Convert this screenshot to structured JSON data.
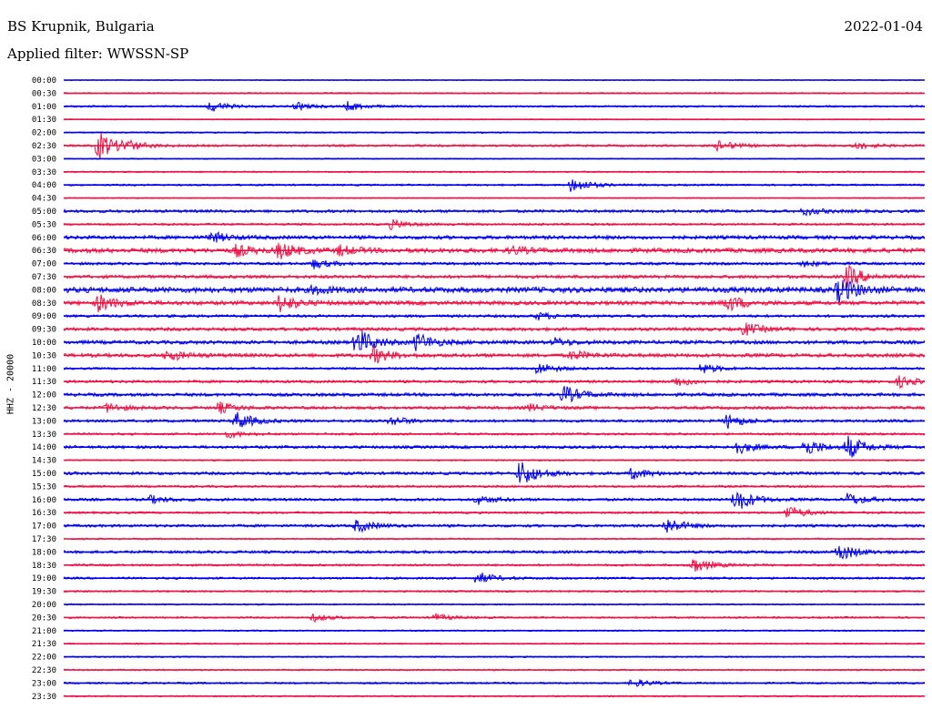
{
  "header": {
    "station": "BS Krupnik, Bulgaria",
    "date": "2022-01-04",
    "filter": "Applied filter: WWSSN-SP"
  },
  "axis_label": "HHZ - 20000",
  "colors": {
    "even_trace": "#0000ee",
    "odd_trace": "#ee1144"
  },
  "chart_data": {
    "type": "line",
    "title": "",
    "ylabel": "HHZ - 20000",
    "row_labels": [
      "00:00",
      "00:30",
      "01:00",
      "01:30",
      "02:00",
      "02:30",
      "03:00",
      "03:30",
      "04:00",
      "04:30",
      "05:00",
      "05:30",
      "06:00",
      "06:30",
      "07:00",
      "07:30",
      "08:00",
      "08:30",
      "09:00",
      "09:30",
      "10:00",
      "10:30",
      "11:00",
      "11:30",
      "12:00",
      "12:30",
      "13:00",
      "13:30",
      "14:00",
      "14:30",
      "15:00",
      "15:30",
      "16:00",
      "16:30",
      "17:00",
      "17:30",
      "18:00",
      "18:30",
      "19:00",
      "19:30",
      "20:00",
      "20:30",
      "21:00",
      "21:30",
      "22:00",
      "22:30",
      "23:00",
      "23:30"
    ],
    "rows": [
      {
        "t": "00:00",
        "noise": 0.5,
        "bursts": []
      },
      {
        "t": "00:30",
        "noise": 0.8,
        "bursts": []
      },
      {
        "t": "01:00",
        "noise": 1.0,
        "bursts": [
          [
            0.17,
            6
          ],
          [
            0.27,
            4
          ],
          [
            0.33,
            5
          ]
        ]
      },
      {
        "t": "01:30",
        "noise": 0.6,
        "bursts": []
      },
      {
        "t": "02:00",
        "noise": 0.8,
        "bursts": []
      },
      {
        "t": "02:30",
        "noise": 1.2,
        "bursts": [
          [
            0.04,
            16
          ],
          [
            0.07,
            5
          ],
          [
            0.76,
            6
          ],
          [
            0.92,
            4
          ]
        ]
      },
      {
        "t": "03:00",
        "noise": 0.6,
        "bursts": []
      },
      {
        "t": "03:30",
        "noise": 0.8,
        "bursts": []
      },
      {
        "t": "04:00",
        "noise": 1.0,
        "bursts": [
          [
            0.59,
            9
          ]
        ]
      },
      {
        "t": "04:30",
        "noise": 0.6,
        "bursts": []
      },
      {
        "t": "05:00",
        "noise": 1.6,
        "bursts": [
          [
            0.86,
            4
          ]
        ]
      },
      {
        "t": "05:30",
        "noise": 1.2,
        "bursts": [
          [
            0.38,
            5
          ]
        ]
      },
      {
        "t": "06:00",
        "noise": 2.0,
        "bursts": [
          [
            0.17,
            6
          ]
        ]
      },
      {
        "t": "06:30",
        "noise": 2.5,
        "bursts": [
          [
            0.2,
            6
          ],
          [
            0.25,
            9
          ],
          [
            0.32,
            5
          ],
          [
            0.52,
            4
          ]
        ]
      },
      {
        "t": "07:00",
        "noise": 1.5,
        "bursts": [
          [
            0.29,
            5
          ],
          [
            0.86,
            3
          ]
        ]
      },
      {
        "t": "07:30",
        "noise": 1.8,
        "bursts": [
          [
            0.91,
            12
          ]
        ]
      },
      {
        "t": "08:00",
        "noise": 3.0,
        "bursts": [
          [
            0.29,
            4
          ],
          [
            0.9,
            14
          ]
        ]
      },
      {
        "t": "08:30",
        "noise": 2.2,
        "bursts": [
          [
            0.04,
            9
          ],
          [
            0.25,
            10
          ],
          [
            0.77,
            9
          ]
        ]
      },
      {
        "t": "09:00",
        "noise": 1.5,
        "bursts": [
          [
            0.55,
            4
          ]
        ]
      },
      {
        "t": "09:30",
        "noise": 1.8,
        "bursts": [
          [
            0.79,
            7
          ]
        ]
      },
      {
        "t": "10:00",
        "noise": 2.0,
        "bursts": [
          [
            0.34,
            16
          ],
          [
            0.41,
            10
          ],
          [
            0.57,
            4
          ]
        ]
      },
      {
        "t": "10:30",
        "noise": 2.0,
        "bursts": [
          [
            0.12,
            6
          ],
          [
            0.36,
            9
          ],
          [
            0.59,
            5
          ]
        ]
      },
      {
        "t": "11:00",
        "noise": 1.2,
        "bursts": [
          [
            0.55,
            7
          ],
          [
            0.74,
            6
          ]
        ]
      },
      {
        "t": "11:30",
        "noise": 1.5,
        "bursts": [
          [
            0.71,
            5
          ],
          [
            0.97,
            6
          ]
        ]
      },
      {
        "t": "12:00",
        "noise": 1.8,
        "bursts": [
          [
            0.58,
            10
          ]
        ]
      },
      {
        "t": "12:30",
        "noise": 1.6,
        "bursts": [
          [
            0.05,
            5
          ],
          [
            0.18,
            6
          ],
          [
            0.54,
            4
          ]
        ]
      },
      {
        "t": "13:00",
        "noise": 1.5,
        "bursts": [
          [
            0.2,
            10
          ],
          [
            0.38,
            5
          ],
          [
            0.77,
            8
          ]
        ]
      },
      {
        "t": "13:30",
        "noise": 1.2,
        "bursts": [
          [
            0.19,
            4
          ]
        ]
      },
      {
        "t": "14:00",
        "noise": 1.6,
        "bursts": [
          [
            0.78,
            8
          ],
          [
            0.86,
            10
          ],
          [
            0.91,
            13
          ]
        ]
      },
      {
        "t": "14:30",
        "noise": 0.8,
        "bursts": []
      },
      {
        "t": "15:00",
        "noise": 1.6,
        "bursts": [
          [
            0.53,
            15
          ],
          [
            0.66,
            6
          ]
        ]
      },
      {
        "t": "15:30",
        "noise": 1.2,
        "bursts": []
      },
      {
        "t": "16:00",
        "noise": 1.5,
        "bursts": [
          [
            0.1,
            4
          ],
          [
            0.48,
            5
          ],
          [
            0.78,
            14
          ],
          [
            0.91,
            7
          ]
        ]
      },
      {
        "t": "16:30",
        "noise": 1.2,
        "bursts": [
          [
            0.84,
            8
          ]
        ]
      },
      {
        "t": "17:00",
        "noise": 1.5,
        "bursts": [
          [
            0.34,
            7
          ],
          [
            0.7,
            9
          ]
        ]
      },
      {
        "t": "17:30",
        "noise": 0.8,
        "bursts": []
      },
      {
        "t": "18:00",
        "noise": 1.5,
        "bursts": [
          [
            0.9,
            10
          ]
        ]
      },
      {
        "t": "18:30",
        "noise": 1.2,
        "bursts": [
          [
            0.73,
            9
          ]
        ]
      },
      {
        "t": "19:00",
        "noise": 1.2,
        "bursts": [
          [
            0.48,
            7
          ]
        ]
      },
      {
        "t": "19:30",
        "noise": 1.0,
        "bursts": []
      },
      {
        "t": "20:00",
        "noise": 0.8,
        "bursts": []
      },
      {
        "t": "20:30",
        "noise": 1.0,
        "bursts": [
          [
            0.29,
            4
          ],
          [
            0.43,
            4
          ]
        ]
      },
      {
        "t": "21:00",
        "noise": 0.8,
        "bursts": []
      },
      {
        "t": "21:30",
        "noise": 0.8,
        "bursts": []
      },
      {
        "t": "22:00",
        "noise": 0.8,
        "bursts": []
      },
      {
        "t": "22:30",
        "noise": 0.8,
        "bursts": []
      },
      {
        "t": "23:00",
        "noise": 1.0,
        "bursts": [
          [
            0.66,
            5
          ]
        ]
      },
      {
        "t": "23:30",
        "noise": 0.8,
        "bursts": []
      }
    ]
  }
}
